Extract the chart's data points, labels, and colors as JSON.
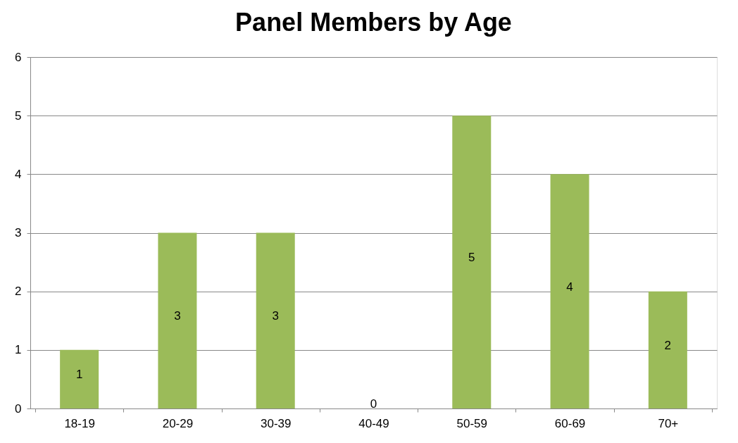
{
  "chart_data": {
    "type": "bar",
    "title": "Panel Members by Age",
    "categories": [
      "18-19",
      "20-29",
      "30-39",
      "40-49",
      "50-59",
      "60-69",
      "70+"
    ],
    "values": [
      1,
      3,
      3,
      0,
      5,
      4,
      2
    ],
    "color": "#9bbb59",
    "ylim": [
      0,
      6
    ],
    "yticks": [
      0,
      1,
      2,
      3,
      4,
      5,
      6
    ],
    "grid": "y",
    "data_labels": true
  }
}
